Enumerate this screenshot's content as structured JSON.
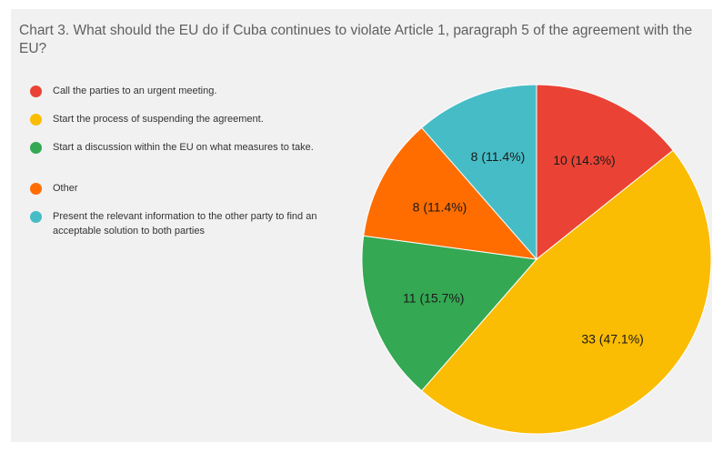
{
  "chart_data": {
    "type": "pie",
    "title": "Chart 3. What should the EU do if Cuba continues to violate Article 1, paragraph 5 of the agreement with the EU?",
    "legend_position": "left",
    "slices": [
      {
        "name": "Call the parties to an urgent meeting.",
        "value": 10,
        "percent": 14.3,
        "label": "10 (14.3%)",
        "color": "#ea4335"
      },
      {
        "name": "Start the process of suspending the agreement.",
        "value": 33,
        "percent": 47.1,
        "label": "33 (47.1%)",
        "color": "#fbbc04"
      },
      {
        "name": "Start a discussion within the EU on what measures to take.",
        "value": 11,
        "percent": 15.7,
        "label": "11 (15.7%)",
        "color": "#34a853"
      },
      {
        "name": "Other",
        "value": 8,
        "percent": 11.4,
        "label": "8 (11.4%)",
        "color": "#ff6d01"
      },
      {
        "name": "Present the relevant information to the other party to find an acceptable solution to both parties",
        "value": 8,
        "percent": 11.4,
        "label": "8 (11.4%)",
        "color": "#46bdc6"
      }
    ]
  }
}
